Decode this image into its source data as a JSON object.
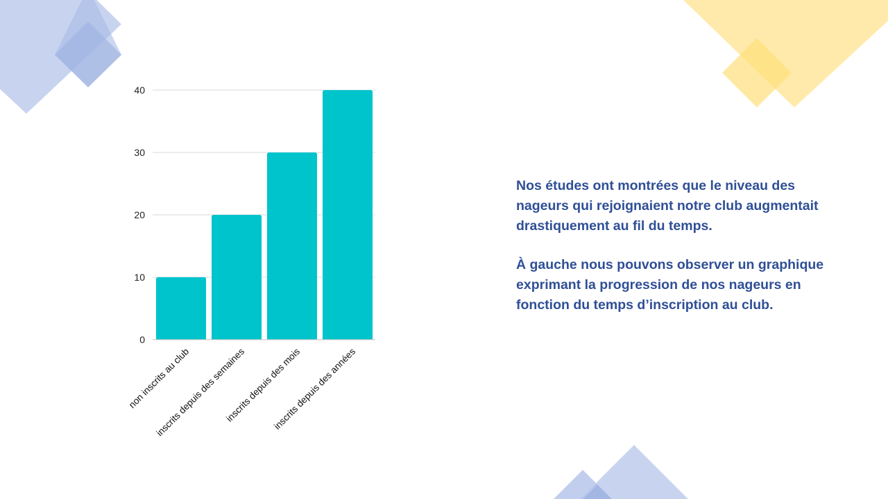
{
  "slide": {
    "paragraph_1": "Nos études ont montrées que le niveau des nageurs qui rejoignaient notre club augmentait drastiquement au fil du temps.",
    "paragraph_2": "À gauche nous pouvons observer un graphique exprimant la progression de nos nageurs en fonction du temps d’inscription au club."
  },
  "colors": {
    "bar": "#00C4CC",
    "text": "#2F4F96",
    "deco_blue": "#AFC0E8",
    "deco_yellow": "#FFE58A",
    "grid": "#D9D9D9"
  },
  "chart_data": {
    "type": "bar",
    "title": "",
    "xlabel": "",
    "ylabel": "",
    "categories": [
      "non inscrits au club",
      "inscrits depuis des semaines",
      "inscrits depuis des mois",
      "inscrits depuis des années"
    ],
    "values": [
      10,
      20,
      30,
      40
    ],
    "ylim": [
      0,
      40
    ],
    "yticks": [
      0,
      10,
      20,
      30,
      40
    ],
    "grid": true,
    "legend": "none"
  }
}
